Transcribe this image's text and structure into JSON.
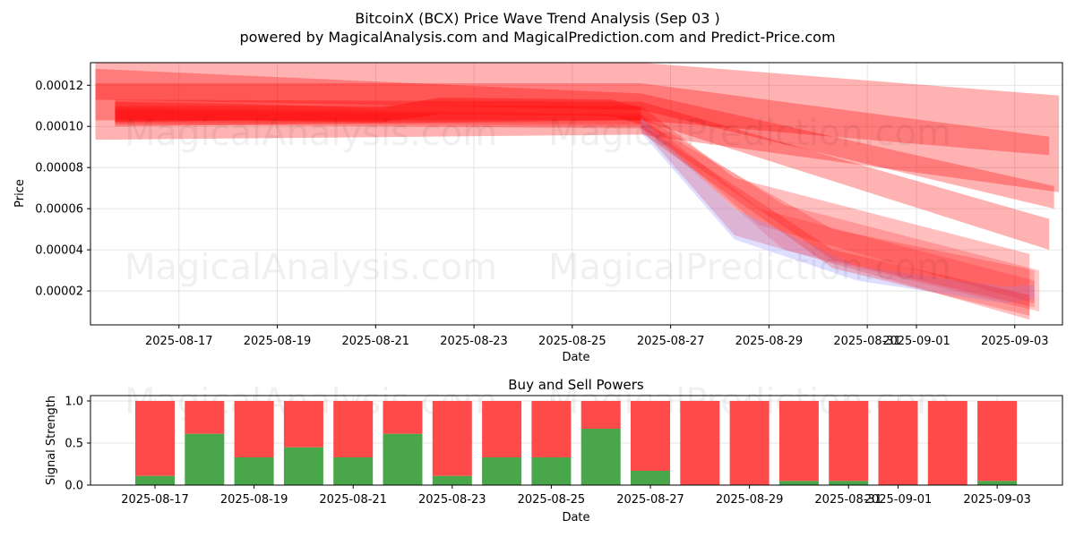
{
  "title_line1": "BitcoinX (BCX) Price Wave Trend Analysis (Sep 03 )",
  "title_line2": "powered by MagicalAnalysis.com and MagicalPrediction.com and Predict-Price.com",
  "watermarks": [
    "MagicalAnalysis.com",
    "MagicalPrediction.com"
  ],
  "colors": {
    "red": "#ff0000",
    "blue": "#a0a0ff",
    "bar_buy": "#4aa64a",
    "bar_sell": "#ff4a4a",
    "grid": "#dddddd"
  },
  "chart_data": [
    {
      "type": "area",
      "title": "",
      "xlabel": "Date",
      "ylabel": "Price",
      "xlim": [
        "2025-08-15.2",
        "2025-09-03.9"
      ],
      "ylim": [
        3.5e-06,
        0.000131
      ],
      "grid": true,
      "x_ticks": [
        "2025-08-17",
        "2025-08-19",
        "2025-08-21",
        "2025-08-23",
        "2025-08-25",
        "2025-08-27",
        "2025-08-29",
        "2025-08-31",
        "2025-09-01",
        "2025-09-03"
      ],
      "y_ticks": [
        "0.00002",
        "0.00004",
        "0.00006",
        "0.00008",
        "0.00010",
        "0.00012"
      ],
      "y_tick_values": [
        2e-05,
        4e-05,
        6e-05,
        8e-05,
        0.0001,
        0.00012
      ],
      "bands": [
        {
          "color": "red",
          "opacity": 0.3,
          "upper": [
            [
              0,
              0.000131
            ],
            [
              11.1,
              0.000131
            ],
            [
              19.6,
              0.000115
            ]
          ],
          "lower": [
            [
              0,
              9.35e-05
            ],
            [
              11.1,
              9.6e-05
            ],
            [
              19.6,
              6.8e-05
            ]
          ]
        },
        {
          "color": "red",
          "opacity": 0.3,
          "upper": [
            [
              0,
              0.000121
            ],
            [
              11.1,
              0.000121
            ],
            [
              19.4,
              9.5e-05
            ]
          ],
          "lower": [
            [
              0,
              0.000103
            ],
            [
              11.1,
              0.000103
            ],
            [
              19.4,
              8.6e-05
            ]
          ]
        },
        {
          "color": "red",
          "opacity": 0.3,
          "upper": [
            [
              0,
              0.000128
            ],
            [
              11.1,
              0.000116
            ],
            [
              19.5,
              7.1e-05
            ]
          ],
          "lower": [
            [
              0,
              0.000113
            ],
            [
              11.1,
              0.000108
            ],
            [
              19.5,
              6e-05
            ]
          ]
        },
        {
          "color": "red",
          "opacity": 0.3,
          "upper": [
            [
              0.4,
              0.000113
            ],
            [
              11.1,
              0.000112
            ],
            [
              19.4,
              5.5e-05
            ]
          ],
          "lower": [
            [
              0.4,
              0.0001
            ],
            [
              11.1,
              0.000103
            ],
            [
              19.4,
              4e-05
            ]
          ]
        },
        {
          "color": "red",
          "opacity": 0.35,
          "upper": [
            [
              0.4,
              0.000112
            ],
            [
              3,
              0.000111
            ],
            [
              5.8,
              0.000109
            ],
            [
              7,
              0.000114
            ],
            [
              10.5,
              0.000113
            ],
            [
              11.1,
              0.000109
            ]
          ],
          "lower": [
            [
              0.4,
              0.000102
            ],
            [
              3,
              0.000103
            ],
            [
              5.8,
              0.000102
            ],
            [
              7,
              0.000106
            ],
            [
              10.5,
              0.000105
            ],
            [
              11.1,
              0.000101
            ]
          ]
        },
        {
          "color": "red",
          "opacity": 0.25,
          "upper": [
            [
              0.4,
              0.00011
            ],
            [
              11.1,
              0.00011
            ],
            [
              13,
              7.5e-05
            ],
            [
              19.0,
              3.8e-05
            ]
          ],
          "lower": [
            [
              0.4,
              0.000101
            ],
            [
              11.1,
              9.9e-05
            ],
            [
              13,
              4.7e-05
            ],
            [
              19.0,
              6e-06
            ]
          ]
        },
        {
          "color": "red",
          "opacity": 0.2,
          "upper": [
            [
              0.4,
              0.000109
            ],
            [
              11.1,
              0.000106
            ],
            [
              14,
              6.2e-05
            ],
            [
              19.2,
              3e-05
            ]
          ],
          "lower": [
            [
              0.4,
              0.000102
            ],
            [
              11.1,
              0.0001
            ],
            [
              14,
              4e-05
            ],
            [
              19.2,
              1e-05
            ]
          ]
        },
        {
          "color": "red",
          "opacity": 0.18,
          "upper": [
            [
              0.4,
              0.000108
            ],
            [
              11.1,
              0.000105
            ],
            [
              13.5,
              6e-05
            ],
            [
              19.1,
              2.5e-05
            ]
          ],
          "lower": [
            [
              0.4,
              0.000103
            ],
            [
              11.1,
              0.000101
            ],
            [
              13.5,
              5.2e-05
            ],
            [
              19.1,
              1.4e-05
            ]
          ]
        },
        {
          "color": "blue",
          "opacity": 0.35,
          "upper": [
            [
              11.1,
              0.000104
            ],
            [
              13,
              6e-05
            ],
            [
              15.5,
              3.2e-05
            ],
            [
              18.5,
              2.2e-05
            ],
            [
              19.1,
              2.3e-05
            ]
          ],
          "lower": [
            [
              11.1,
              9.7e-05
            ],
            [
              13,
              4.5e-05
            ],
            [
              15.5,
              2.5e-05
            ],
            [
              18.5,
              1.4e-05
            ],
            [
              19.1,
              1.6e-05
            ]
          ]
        },
        {
          "color": "red",
          "opacity": 0.2,
          "upper": [
            [
              11.1,
              0.000103
            ],
            [
              15,
              5e-05
            ],
            [
              19.1,
              3e-05
            ]
          ],
          "lower": [
            [
              11.1,
              9.9e-05
            ],
            [
              15,
              3.5e-05
            ],
            [
              19.1,
              1.2e-05
            ]
          ]
        },
        {
          "color": "red",
          "opacity": 0.22,
          "upper": [
            [
              11.1,
              0.000101
            ],
            [
              15,
              4e-05
            ],
            [
              19.0,
              1.8e-05
            ]
          ],
          "lower": [
            [
              11.1,
              9.7e-05
            ],
            [
              15,
              3.1e-05
            ],
            [
              19.0,
              8e-06
            ]
          ]
        }
      ]
    },
    {
      "type": "bar",
      "title": "Buy and Sell Powers",
      "xlabel": "Date",
      "ylabel": "Signal Strength",
      "ylim": [
        0,
        1.0
      ],
      "x_ticks": [
        "2025-08-17",
        "2025-08-19",
        "2025-08-21",
        "2025-08-23",
        "2025-08-25",
        "2025-08-27",
        "2025-08-29",
        "2025-08-31",
        "2025-09-01",
        "2025-09-03"
      ],
      "y_ticks": [
        "0.0",
        "0.5",
        "1.0"
      ],
      "y_tick_values": [
        0.0,
        0.5,
        1.0
      ],
      "categories": [
        "2025-08-17",
        "2025-08-18",
        "2025-08-19",
        "2025-08-20",
        "2025-08-21",
        "2025-08-22",
        "2025-08-23",
        "2025-08-24",
        "2025-08-25",
        "2025-08-26",
        "2025-08-27",
        "2025-08-28",
        "2025-08-29",
        "2025-08-30",
        "2025-08-31",
        "2025-09-01",
        "2025-09-02",
        "2025-09-03"
      ],
      "series": [
        {
          "name": "Buy",
          "color": "bar_buy",
          "values": [
            0.11,
            0.61,
            0.33,
            0.45,
            0.33,
            0.61,
            0.11,
            0.33,
            0.33,
            0.67,
            0.17,
            0.0,
            0.0,
            0.05,
            0.05,
            0.0,
            0.0,
            0.05
          ]
        },
        {
          "name": "Sell",
          "color": "bar_sell",
          "values": [
            0.89,
            0.39,
            0.67,
            0.55,
            0.67,
            0.39,
            0.89,
            0.67,
            0.67,
            0.33,
            0.83,
            1.0,
            1.0,
            0.95,
            0.95,
            1.0,
            1.0,
            0.95
          ]
        }
      ]
    }
  ]
}
